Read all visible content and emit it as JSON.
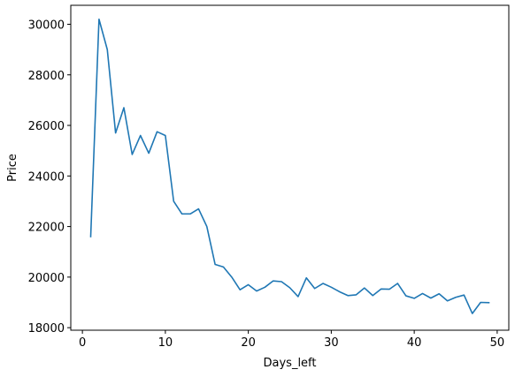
{
  "colors": {
    "series": "#1f77b4",
    "axes": "#000000",
    "background": "#ffffff"
  },
  "chart_data": {
    "type": "line",
    "title": "",
    "xlabel": "Days_left",
    "ylabel": "Price",
    "xlim": [
      -1.4,
      51.4
    ],
    "ylim": [
      17900,
      30750
    ],
    "xticks": [
      0,
      10,
      20,
      30,
      40,
      50
    ],
    "yticks": [
      18000,
      20000,
      22000,
      24000,
      26000,
      28000,
      30000
    ],
    "xtick_labels": [
      "0",
      "10",
      "20",
      "30",
      "40",
      "50"
    ],
    "ytick_labels": [
      "18000",
      "20000",
      "22000",
      "24000",
      "26000",
      "28000",
      "30000"
    ],
    "grid": false,
    "series": [
      {
        "color": "#1f77b4",
        "x": [
          1,
          2,
          3,
          4,
          5,
          6,
          7,
          8,
          9,
          10,
          11,
          12,
          13,
          14,
          15,
          16,
          17,
          18,
          19,
          20,
          21,
          22,
          23,
          24,
          25,
          26,
          27,
          28,
          29,
          30,
          31,
          32,
          33,
          34,
          35,
          36,
          37,
          38,
          39,
          40,
          41,
          42,
          43,
          44,
          45,
          46,
          47,
          48,
          49
        ],
        "y": [
          21600,
          30200,
          29000,
          25700,
          26700,
          24850,
          25600,
          24900,
          25750,
          25600,
          23000,
          22500,
          22500,
          22700,
          22000,
          20500,
          20400,
          20000,
          19500,
          19700,
          19450,
          19600,
          19850,
          19820,
          19580,
          19230,
          19970,
          19550,
          19750,
          19600,
          19420,
          19270,
          19300,
          19570,
          19270,
          19530,
          19520,
          19750,
          19260,
          19160,
          19350,
          19170,
          19340,
          19060,
          19200,
          19290,
          18560,
          19000,
          18990
        ]
      }
    ]
  }
}
